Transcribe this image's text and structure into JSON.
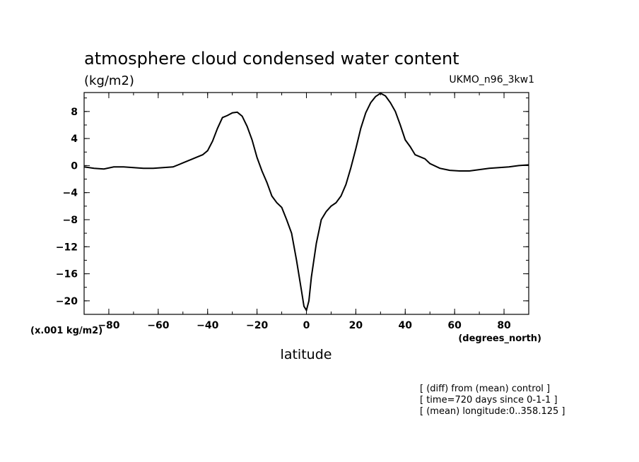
{
  "header": {
    "title": "atmosphere cloud condensed water content",
    "units": "(kg/m2)",
    "model": "UKMO_n96_3kw1"
  },
  "axes": {
    "y_scale_note": "(x.001 kg/m2)",
    "x_units": "(degrees_north)",
    "xlabel": "latitude"
  },
  "notes": [
    "[ (diff) from (mean) control ]",
    "[ time=720 days since 0-1-1 ]",
    "[ (mean) longitude:0..358.125 ]"
  ],
  "chart_data": {
    "type": "line",
    "title": "atmosphere cloud condensed water content",
    "subtitle": "(kg/m2)",
    "xlabel": "latitude",
    "xlim": [
      -90,
      90
    ],
    "ylim": [
      -22,
      10.8
    ],
    "xticks": [
      -80,
      -60,
      -40,
      -20,
      0,
      20,
      40,
      60,
      80
    ],
    "yticks": [
      8,
      4,
      0,
      -4,
      -8,
      -12,
      -16,
      -20
    ],
    "x_minor_step": 10,
    "y_minor_step": 2,
    "grid": false,
    "series": [
      {
        "x": [
          -90,
          -86,
          -82,
          -78,
          -74,
          -70,
          -66,
          -62,
          -58,
          -54,
          -50,
          -46,
          -44,
          -42,
          -40,
          -38,
          -36,
          -34,
          -32,
          -30,
          -28,
          -26,
          -24,
          -22,
          -20,
          -18,
          -16,
          -14,
          -12,
          -10,
          -8,
          -6,
          -4,
          -2,
          -1,
          0,
          1,
          2,
          4,
          6,
          8,
          10,
          12,
          14,
          16,
          18,
          20,
          22,
          24,
          26,
          28,
          30,
          32,
          34,
          36,
          38,
          40,
          42,
          44,
          46,
          48,
          50,
          54,
          58,
          62,
          66,
          70,
          74,
          78,
          82,
          86,
          90
        ],
        "y": [
          -0.2,
          -0.4,
          -0.5,
          -0.2,
          -0.2,
          -0.3,
          -0.4,
          -0.4,
          -0.3,
          -0.2,
          0.4,
          1.0,
          1.3,
          1.6,
          2.2,
          3.6,
          5.5,
          7.1,
          7.4,
          7.8,
          7.9,
          7.3,
          5.8,
          3.8,
          1.2,
          -0.8,
          -2.5,
          -4.5,
          -5.5,
          -6.2,
          -8.0,
          -10.0,
          -14.0,
          -18.5,
          -20.8,
          -21.4,
          -20.0,
          -16.5,
          -11.5,
          -8.0,
          -6.8,
          -6.0,
          -5.5,
          -4.5,
          -2.8,
          -0.3,
          2.5,
          5.5,
          7.8,
          9.3,
          10.2,
          10.7,
          10.3,
          9.3,
          8.0,
          6.0,
          3.8,
          2.8,
          1.6,
          1.3,
          1.0,
          0.3,
          -0.4,
          -0.7,
          -0.8,
          -0.8,
          -0.6,
          -0.4,
          -0.3,
          -0.2,
          0.0,
          0.1
        ]
      }
    ]
  }
}
